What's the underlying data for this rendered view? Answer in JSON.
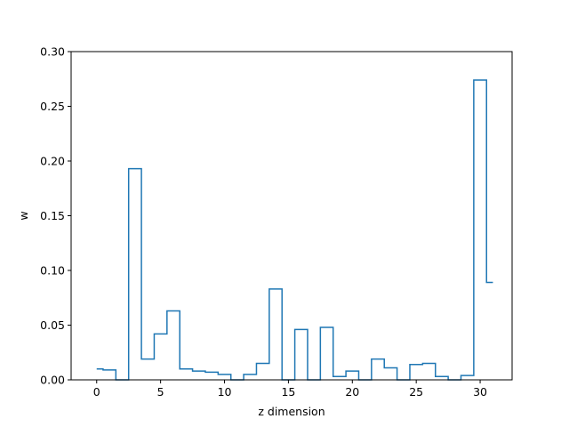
{
  "chart_data": {
    "type": "line",
    "drawstyle": "steps-mid",
    "title": "",
    "xlabel": "z dimension",
    "ylabel": "w",
    "xlim": [
      -2,
      32.5
    ],
    "ylim": [
      0,
      0.3
    ],
    "xticks": [
      0,
      5,
      10,
      15,
      20,
      25,
      30
    ],
    "yticks": [
      0.0,
      0.05,
      0.1,
      0.15,
      0.2,
      0.25,
      0.3
    ],
    "xtick_labels": [
      "0",
      "5",
      "10",
      "15",
      "20",
      "25",
      "30"
    ],
    "ytick_labels": [
      "0.00",
      "0.05",
      "0.10",
      "0.15",
      "0.20",
      "0.25",
      "0.30"
    ],
    "grid": false,
    "legend": "none",
    "series": [
      {
        "color": "#1f77b4",
        "x": [
          0,
          1,
          2,
          3,
          4,
          5,
          6,
          7,
          8,
          9,
          10,
          11,
          12,
          13,
          14,
          15,
          16,
          17,
          18,
          19,
          20,
          21,
          22,
          23,
          24,
          25,
          26,
          27,
          28,
          29,
          30,
          31
        ],
        "values": [
          0.01,
          0.009,
          0.0,
          0.193,
          0.019,
          0.042,
          0.063,
          0.01,
          0.008,
          0.007,
          0.005,
          0.0,
          0.005,
          0.015,
          0.083,
          0.0,
          0.046,
          0.0,
          0.048,
          0.003,
          0.008,
          0.0,
          0.019,
          0.011,
          0.0,
          0.014,
          0.015,
          0.003,
          0.0,
          0.004,
          0.274,
          0.089
        ]
      }
    ]
  }
}
